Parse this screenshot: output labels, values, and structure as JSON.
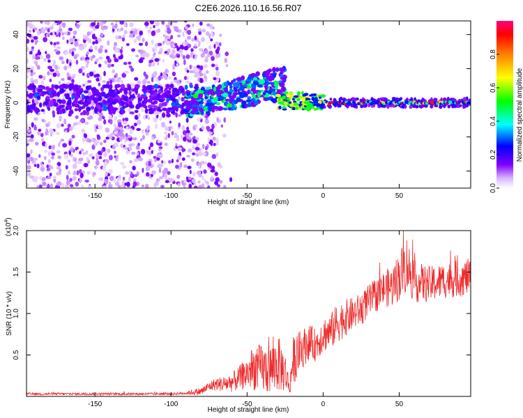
{
  "chart_data": [
    {
      "type": "heatmap",
      "title": "C2E6.2026.110.16.56.R07",
      "xlabel": "Height of straight line (km)",
      "ylabel": "Frequency (Hz)",
      "xlim": [
        -195,
        97
      ],
      "ylim": [
        -50,
        48
      ],
      "xticks": [
        -150,
        -100,
        -50,
        0,
        50
      ],
      "xtick_labels": [
        "-150",
        "-100",
        "-50",
        "0",
        "50"
      ],
      "yticks": [
        40,
        20,
        0,
        -20,
        -40
      ],
      "ytick_labels": [
        "40",
        "20",
        "0",
        "-20",
        "-40"
      ],
      "colorbar": {
        "label": "Normalized spectral amplitude",
        "range": [
          0,
          1
        ],
        "ticks": [
          0.0,
          0.2,
          0.4,
          0.6,
          0.8
        ],
        "tick_labels": [
          "0.0",
          "0.2",
          "0.4",
          "0.6",
          "0.8"
        ],
        "colormap": [
          "#ffffff",
          "#d9b3ff",
          "#8000ff",
          "#0000ff",
          "#00ffff",
          "#00ff00",
          "#ffff00",
          "#ff8000",
          "#ff0000",
          "#ff0080"
        ]
      },
      "regions": [
        {
          "name": "diffuse broadband noise",
          "x_range": [
            -195,
            -78
          ],
          "freq_range": [
            -50,
            48
          ],
          "amplitude": 0.05
        },
        {
          "name": "strong low-frequency band",
          "x_range": [
            -195,
            -80
          ],
          "freq_range": [
            -6,
            10
          ],
          "amplitude": 0.15
        },
        {
          "name": "rising branch",
          "x_range": [
            -90,
            -25
          ],
          "freq_from": [
            -8,
            5
          ],
          "freq_to": [
            2,
            22
          ],
          "amplitude": 0.3
        },
        {
          "name": "converging line",
          "x_range": [
            -30,
            0
          ],
          "freq_range": [
            -4,
            6
          ],
          "amplitude": 0.5
        },
        {
          "name": "narrow stable line",
          "x_range": [
            0,
            97
          ],
          "center_freq": 0,
          "amplitude": 0.9
        }
      ]
    },
    {
      "type": "line",
      "xlabel": "Height of straight line (km)",
      "ylabel": "SNR (10 * v/v)",
      "scale_label": "(x10",
      "scale_exponent": "4",
      "xlim": [
        -195,
        97
      ],
      "ylim": [
        0,
        2.0
      ],
      "xticks": [
        -150,
        -100,
        -50,
        0,
        50
      ],
      "xtick_labels": [
        "-150",
        "-100",
        "-50",
        "0",
        "50"
      ],
      "yticks": [
        2.0,
        1.5,
        1.0,
        0.5
      ],
      "ytick_labels": [
        "2.0",
        "1.5",
        "1.0",
        "0.5"
      ],
      "line_color": "#ee2a2a",
      "series": [
        {
          "name": "SNR",
          "x": [
            -195,
            -180,
            -160,
            -140,
            -120,
            -100,
            -90,
            -80,
            -75,
            -70,
            -65,
            -60,
            -55,
            -50,
            -45,
            -40,
            -35,
            -30,
            -25,
            -22,
            -20,
            -15,
            -10,
            -5,
            0,
            5,
            10,
            15,
            20,
            25,
            30,
            35,
            40,
            45,
            50,
            55,
            60,
            70,
            80,
            90,
            97
          ],
          "y": [
            0.03,
            0.03,
            0.03,
            0.03,
            0.03,
            0.03,
            0.04,
            0.06,
            0.12,
            0.15,
            0.15,
            0.17,
            0.22,
            0.28,
            0.35,
            0.33,
            0.32,
            0.4,
            0.3,
            0.1,
            0.42,
            0.55,
            0.65,
            0.62,
            0.75,
            0.78,
            0.9,
            0.95,
            1.0,
            1.05,
            1.15,
            1.22,
            1.3,
            1.32,
            1.45,
            1.6,
            1.38,
            1.35,
            1.4,
            1.42,
            1.45
          ],
          "noise_band": [
            0.015,
            0.015,
            0.015,
            0.015,
            0.015,
            0.015,
            0.02,
            0.05,
            0.06,
            0.08,
            0.1,
            0.12,
            0.15,
            0.2,
            0.28,
            0.3,
            0.3,
            0.35,
            0.25,
            0.08,
            0.3,
            0.25,
            0.22,
            0.2,
            0.22,
            0.22,
            0.25,
            0.22,
            0.2,
            0.2,
            0.2,
            0.2,
            0.22,
            0.25,
            0.3,
            0.35,
            0.25,
            0.22,
            0.22,
            0.22,
            0.22
          ]
        }
      ]
    }
  ]
}
